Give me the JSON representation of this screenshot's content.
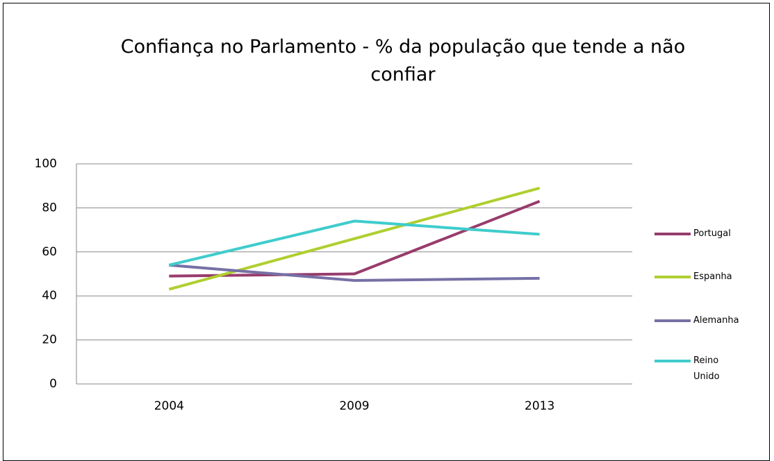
{
  "chart_data": {
    "type": "line",
    "title": "Confiança no Parlamento - % da população que tende a não confiar",
    "categories": [
      "2004",
      "2009",
      "2013"
    ],
    "series": [
      {
        "name": "Portugal",
        "color": "#983c6c",
        "values": [
          49,
          50,
          83
        ]
      },
      {
        "name": "Espanha",
        "color": "#afcf2f",
        "values": [
          43,
          66,
          89
        ]
      },
      {
        "name": "Alemanha",
        "color": "#7670a6",
        "values": [
          54,
          47,
          48
        ]
      },
      {
        "name": "Reino Unido",
        "color": "#3fcccc",
        "values": [
          54,
          74,
          68
        ]
      }
    ],
    "ylim": [
      0,
      100
    ],
    "yticks": [
      0,
      20,
      40,
      60,
      80,
      100
    ],
    "grid": true,
    "legend": "right"
  }
}
